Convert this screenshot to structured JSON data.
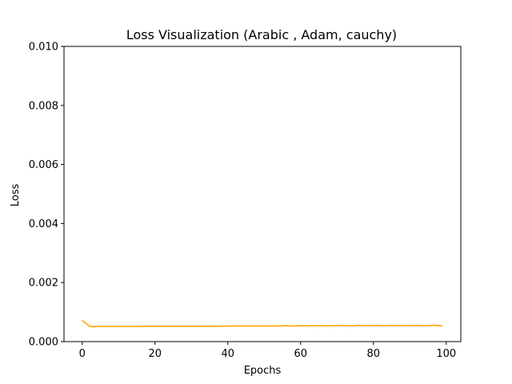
{
  "chart_data": {
    "type": "line",
    "title": "Loss Visualization (Arabic , Adam, cauchy)",
    "xlabel": "Epochs",
    "ylabel": "Loss",
    "xlim": [
      -5,
      104
    ],
    "ylim": [
      0,
      0.01
    ],
    "xticks": [
      0,
      20,
      40,
      60,
      80,
      100
    ],
    "xtick_labels": [
      "0",
      "20",
      "40",
      "60",
      "80",
      "100"
    ],
    "yticks": [
      0,
      0.002,
      0.004,
      0.006,
      0.008,
      0.01
    ],
    "ytick_labels": [
      "0.000",
      "0.002",
      "0.004",
      "0.006",
      "0.008",
      "0.010"
    ],
    "grid": false,
    "legend": "none",
    "series": [
      {
        "color": "#ffa500",
        "x": [
          0,
          1,
          2,
          3,
          4,
          5,
          6,
          7,
          8,
          9,
          10,
          11,
          12,
          13,
          14,
          15,
          16,
          17,
          18,
          19,
          20,
          21,
          22,
          23,
          24,
          25,
          26,
          27,
          28,
          29,
          30,
          31,
          32,
          33,
          34,
          35,
          36,
          37,
          38,
          39,
          40,
          41,
          42,
          43,
          44,
          45,
          46,
          47,
          48,
          49,
          50,
          51,
          52,
          53,
          54,
          55,
          56,
          57,
          58,
          59,
          60,
          61,
          62,
          63,
          64,
          65,
          66,
          67,
          68,
          69,
          70,
          71,
          72,
          73,
          74,
          75,
          76,
          77,
          78,
          79,
          80,
          81,
          82,
          83,
          84,
          85,
          86,
          87,
          88,
          89,
          90,
          91,
          92,
          93,
          94,
          95,
          96,
          97,
          98,
          99
        ],
        "y": [
          0.00072,
          0.00062,
          0.00052,
          0.00051,
          0.00051,
          0.00051,
          0.00051,
          0.00051,
          0.00051,
          0.00051,
          0.00051,
          0.00051,
          0.00051,
          0.00051,
          0.00051,
          0.00052,
          0.00051,
          0.00052,
          0.00052,
          0.00052,
          0.00052,
          0.00052,
          0.00052,
          0.00052,
          0.00052,
          0.00052,
          0.00052,
          0.00052,
          0.00052,
          0.00052,
          0.00052,
          0.00052,
          0.00052,
          0.00052,
          0.00052,
          0.00052,
          0.00052,
          0.00052,
          0.00052,
          0.00053,
          0.00052,
          0.00053,
          0.00053,
          0.00053,
          0.00053,
          0.00053,
          0.00053,
          0.00053,
          0.00053,
          0.00053,
          0.00053,
          0.00053,
          0.00053,
          0.00053,
          0.00053,
          0.00053,
          0.00054,
          0.00053,
          0.00053,
          0.00054,
          0.00053,
          0.00054,
          0.00053,
          0.00054,
          0.00054,
          0.00054,
          0.00054,
          0.00053,
          0.00054,
          0.00054,
          0.00054,
          0.00055,
          0.00054,
          0.00054,
          0.00053,
          0.00054,
          0.00055,
          0.00054,
          0.00054,
          0.00055,
          0.00054,
          0.00055,
          0.00054,
          0.00054,
          0.00054,
          0.00055,
          0.00054,
          0.00055,
          0.00054,
          0.00054,
          0.00055,
          0.00054,
          0.00055,
          0.00054,
          0.00054,
          0.00054,
          0.00055,
          0.00055,
          0.00054,
          0.00053
        ]
      }
    ]
  }
}
